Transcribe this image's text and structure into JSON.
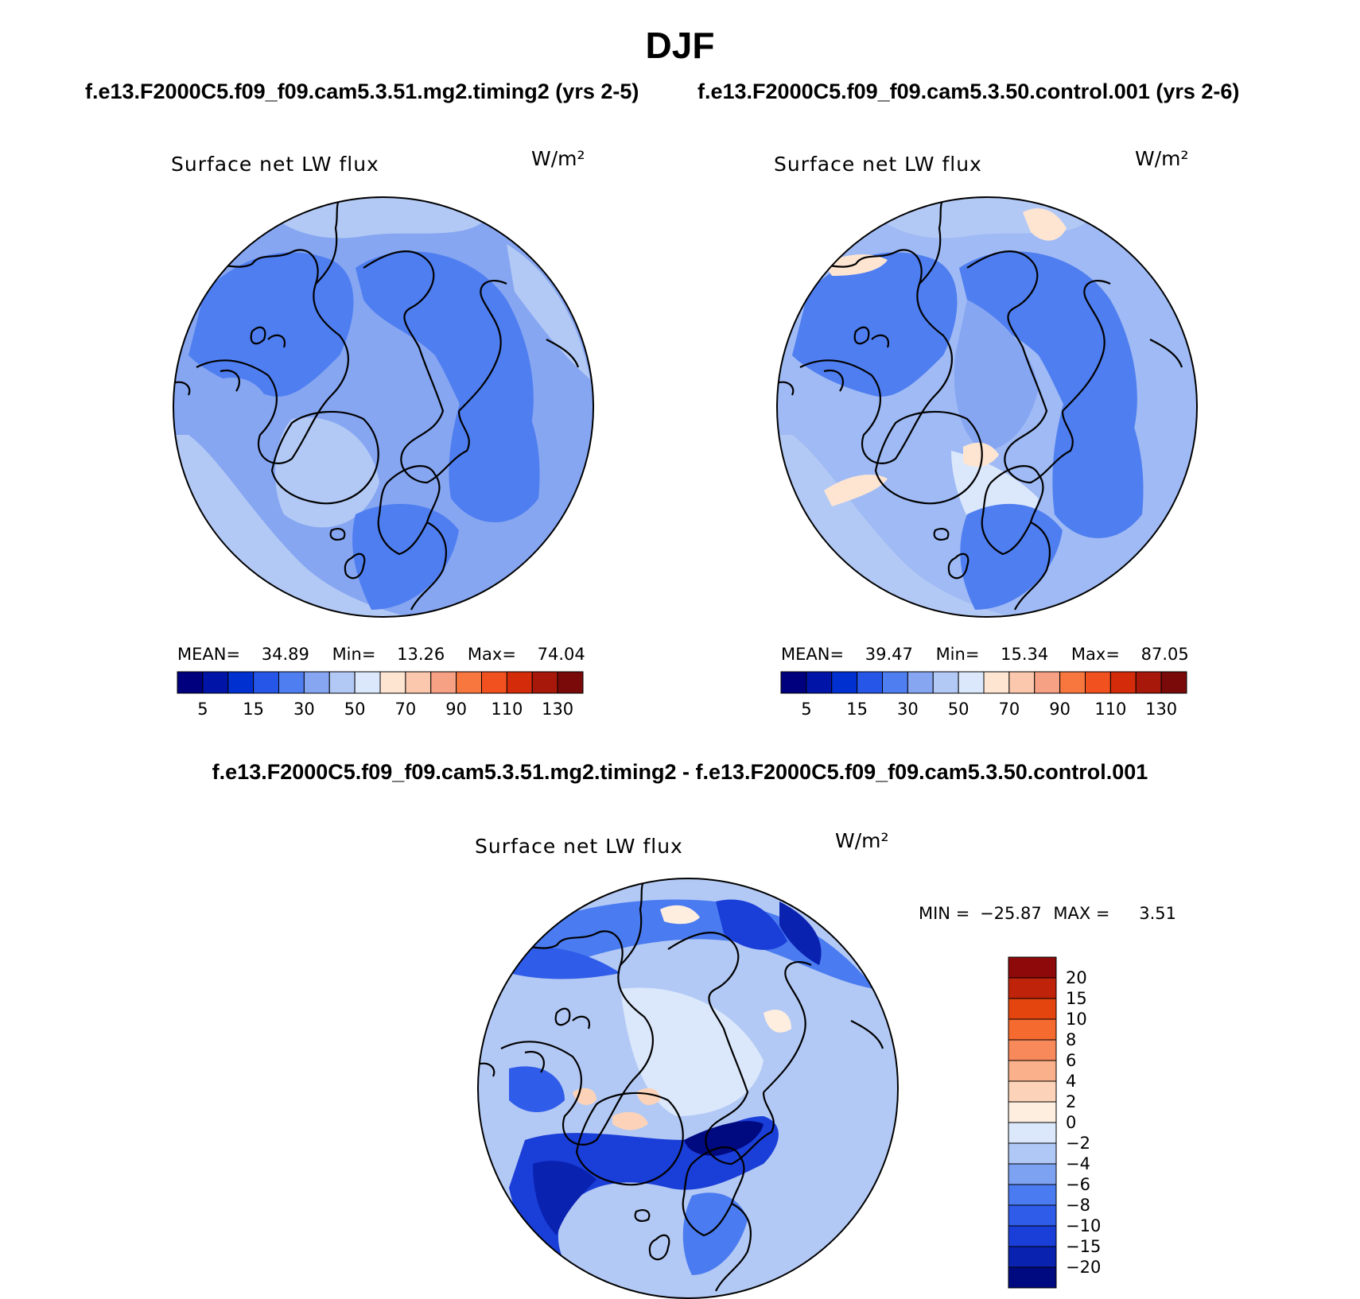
{
  "figure": {
    "season": "DJF",
    "test_case_title": "f.e13.F2000C5.f09_f09.cam5.3.51.mg2.timing2 (yrs 2-5)",
    "control_case_title": "f.e13.F2000C5.f09_f09.cam5.3.50.control.001 (yrs 2-6)",
    "difference_title": "f.e13.F2000C5.f09_f09.cam5.3.51.mg2.timing2 - f.e13.F2000C5.f09_f09.cam5.3.50.control.001"
  },
  "panels": {
    "test": {
      "variable": "Surface net LW flux",
      "units": "W/m²",
      "mean_label": "MEAN=",
      "mean": "34.89",
      "min_label": "Min=",
      "min": "13.26",
      "max_label": "Max=",
      "max": "74.04"
    },
    "control": {
      "variable": "Surface net LW flux",
      "units": "W/m²",
      "mean_label": "MEAN=",
      "mean": "39.47",
      "min_label": "Min=",
      "min": "15.34",
      "max_label": "Max=",
      "max": "87.05"
    },
    "difference": {
      "variable": "Surface net LW flux",
      "units": "W/m²",
      "min_label": "MIN =",
      "min": "−25.87",
      "max_label": "MAX =",
      "max": "3.51"
    }
  },
  "colorbars": {
    "field": {
      "colors": [
        "#00007f",
        "#0015a8",
        "#0030d0",
        "#2656e8",
        "#4f7ef0",
        "#86a6f2",
        "#b3c9f5",
        "#dbe8fb",
        "#fde5d2",
        "#fbc8ae",
        "#f7a184",
        "#f7773f",
        "#f1501f",
        "#d42c0a",
        "#a8180a",
        "#7a0a0a"
      ],
      "tick_labels": [
        "5",
        "15",
        "30",
        "50",
        "70",
        "90",
        "110",
        "130"
      ],
      "tick_after_box": [
        1,
        3,
        5,
        7,
        9,
        11,
        13,
        15
      ]
    },
    "difference": {
      "colors_bottom_to_top": [
        "#000a80",
        "#0a22b0",
        "#1a3ed8",
        "#2f5ce8",
        "#4a7bf0",
        "#7ea2f2",
        "#b0c8f6",
        "#dbe8fb",
        "#fdeee0",
        "#fcd3b8",
        "#f9b08b",
        "#f7895b",
        "#f56a2e",
        "#e4450f",
        "#bf240a",
        "#8e0a0a"
      ],
      "tick_labels_bottom_to_top": [
        "−20",
        "−15",
        "−10",
        "−8",
        "−6",
        "−4",
        "−2",
        "0",
        "2",
        "4",
        "6",
        "8",
        "10",
        "15",
        "20"
      ]
    }
  },
  "map_colors": {
    "test_base": "#86a6f2",
    "control_base": "#9fbaf4",
    "difference_base": "#b3c9f5",
    "coast": "#000000"
  }
}
